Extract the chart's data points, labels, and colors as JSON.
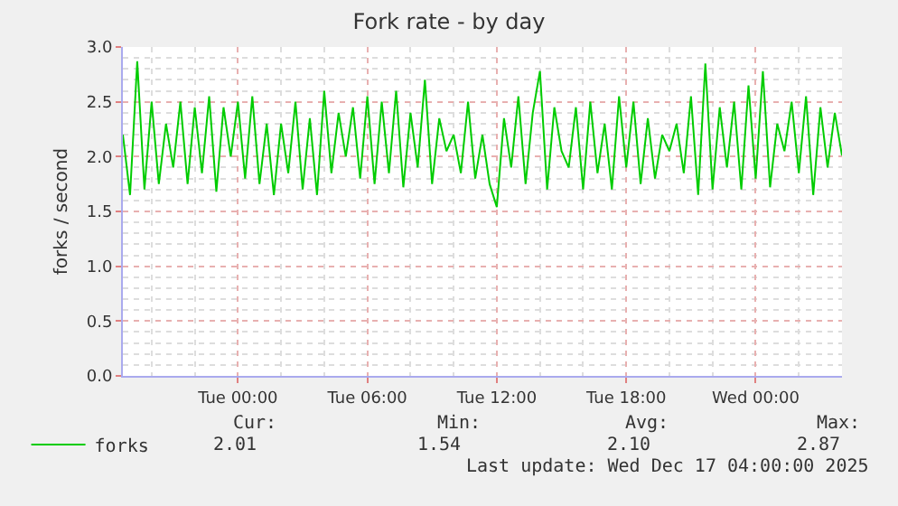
{
  "chart_data": {
    "type": "line",
    "title": "Fork rate - by day",
    "ylabel": "forks / second",
    "x": [
      "2025-12-15T18:40",
      "2025-12-15T19:00",
      "2025-12-15T19:20",
      "2025-12-15T19:40",
      "2025-12-15T20:00",
      "2025-12-15T20:20",
      "2025-12-15T20:40",
      "2025-12-15T21:00",
      "2025-12-15T21:20",
      "2025-12-15T21:40",
      "2025-12-15T22:00",
      "2025-12-15T22:20",
      "2025-12-15T22:40",
      "2025-12-15T23:00",
      "2025-12-15T23:20",
      "2025-12-15T23:40",
      "2025-12-16T00:00",
      "2025-12-16T00:20",
      "2025-12-16T00:40",
      "2025-12-16T01:00",
      "2025-12-16T01:20",
      "2025-12-16T01:40",
      "2025-12-16T02:00",
      "2025-12-16T02:20",
      "2025-12-16T02:40",
      "2025-12-16T03:00",
      "2025-12-16T03:20",
      "2025-12-16T03:40",
      "2025-12-16T04:00",
      "2025-12-16T04:20",
      "2025-12-16T04:40",
      "2025-12-16T05:00",
      "2025-12-16T05:20",
      "2025-12-16T05:40",
      "2025-12-16T06:00",
      "2025-12-16T06:20",
      "2025-12-16T06:40",
      "2025-12-16T07:00",
      "2025-12-16T07:20",
      "2025-12-16T07:40",
      "2025-12-16T08:00",
      "2025-12-16T08:20",
      "2025-12-16T08:40",
      "2025-12-16T09:00",
      "2025-12-16T09:20",
      "2025-12-16T09:40",
      "2025-12-16T10:00",
      "2025-12-16T10:20",
      "2025-12-16T10:40",
      "2025-12-16T11:00",
      "2025-12-16T11:20",
      "2025-12-16T11:40",
      "2025-12-16T12:00",
      "2025-12-16T12:20",
      "2025-12-16T12:40",
      "2025-12-16T13:00",
      "2025-12-16T13:20",
      "2025-12-16T13:40",
      "2025-12-16T14:00",
      "2025-12-16T14:20",
      "2025-12-16T14:40",
      "2025-12-16T15:00",
      "2025-12-16T15:20",
      "2025-12-16T15:40",
      "2025-12-16T16:00",
      "2025-12-16T16:20",
      "2025-12-16T16:40",
      "2025-12-16T17:00",
      "2025-12-16T17:20",
      "2025-12-16T17:40",
      "2025-12-16T18:00",
      "2025-12-16T18:20",
      "2025-12-16T18:40",
      "2025-12-16T19:00",
      "2025-12-16T19:20",
      "2025-12-16T19:40",
      "2025-12-16T20:00",
      "2025-12-16T20:20",
      "2025-12-16T20:40",
      "2025-12-16T21:00",
      "2025-12-16T21:20",
      "2025-12-16T21:40",
      "2025-12-16T22:00",
      "2025-12-16T22:20",
      "2025-12-16T22:40",
      "2025-12-16T23:00",
      "2025-12-16T23:20",
      "2025-12-16T23:40",
      "2025-12-17T00:00",
      "2025-12-17T00:20",
      "2025-12-17T00:40",
      "2025-12-17T01:00",
      "2025-12-17T01:20",
      "2025-12-17T01:40",
      "2025-12-17T02:00",
      "2025-12-17T02:20",
      "2025-12-17T02:40",
      "2025-12-17T03:00",
      "2025-12-17T03:20",
      "2025-12-17T03:40",
      "2025-12-17T04:00"
    ],
    "series": [
      {
        "name": "forks",
        "color": "#00cc00",
        "values": [
          2.2,
          1.65,
          2.87,
          1.7,
          2.5,
          1.75,
          2.3,
          1.9,
          2.5,
          1.75,
          2.45,
          1.85,
          2.55,
          1.68,
          2.45,
          2.0,
          2.5,
          1.8,
          2.55,
          1.75,
          2.3,
          1.65,
          2.3,
          1.85,
          2.5,
          1.7,
          2.35,
          1.65,
          2.6,
          1.85,
          2.4,
          2.0,
          2.45,
          1.8,
          2.55,
          1.75,
          2.5,
          1.85,
          2.6,
          1.72,
          2.4,
          1.9,
          2.7,
          1.75,
          2.35,
          2.05,
          2.2,
          1.85,
          2.5,
          1.8,
          2.2,
          1.75,
          1.54,
          2.35,
          1.9,
          2.55,
          1.75,
          2.4,
          2.78,
          1.7,
          2.45,
          2.05,
          1.9,
          2.45,
          1.7,
          2.5,
          1.85,
          2.3,
          1.7,
          2.55,
          1.9,
          2.5,
          1.75,
          2.35,
          1.8,
          2.2,
          2.05,
          2.3,
          1.85,
          2.55,
          1.65,
          2.85,
          1.7,
          2.45,
          1.9,
          2.5,
          1.7,
          2.65,
          1.8,
          2.78,
          1.72,
          2.3,
          2.05,
          2.5,
          1.85,
          2.55,
          1.65,
          2.45,
          1.9,
          2.4,
          2.01
        ]
      }
    ],
    "xlim": [
      "2025-12-15T18:40",
      "2025-12-17T04:00"
    ],
    "xticks": [
      {
        "value": "2025-12-16T00:00",
        "label": "Tue 00:00"
      },
      {
        "value": "2025-12-16T06:00",
        "label": "Tue 06:00"
      },
      {
        "value": "2025-12-16T12:00",
        "label": "Tue 12:00"
      },
      {
        "value": "2025-12-16T18:00",
        "label": "Tue 18:00"
      },
      {
        "value": "2025-12-17T00:00",
        "label": "Wed 00:00"
      }
    ],
    "ylim": [
      0,
      3
    ],
    "yticks": [
      {
        "value": 0,
        "label": "0.0"
      },
      {
        "value": 0.5,
        "label": "0.5"
      },
      {
        "value": 1,
        "label": "1.0"
      },
      {
        "value": 1.5,
        "label": "1.5"
      },
      {
        "value": 2,
        "label": "2.0"
      },
      {
        "value": 2.5,
        "label": "2.5"
      },
      {
        "value": 3,
        "label": "3.0"
      }
    ],
    "grid": true,
    "legend": "bottom left",
    "line_style": "solid",
    "marker": "none",
    "annotations": [
      "Cur:",
      "2.01",
      "Min:",
      "1.54",
      "Avg:",
      "2.10",
      "Max:",
      "2.87",
      "Last update: Wed Dec 17 04:00:00 2025"
    ]
  }
}
